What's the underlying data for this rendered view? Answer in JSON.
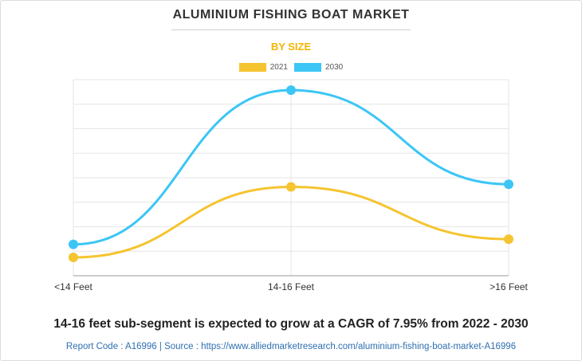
{
  "header": {
    "title": "ALUMINIUM FISHING BOAT MARKET",
    "subtitle": "BY SIZE"
  },
  "colors": {
    "series_2021": "#f5c431",
    "series_2030": "#3cc6f5",
    "grid": "#e6e6e6",
    "axis": "#999999"
  },
  "chart_data": {
    "type": "line",
    "title": "",
    "xlabel": "",
    "ylabel": "",
    "categories": [
      "<14 Feet",
      "14-16 Feet",
      ">16 Feet"
    ],
    "series": [
      {
        "name": "2021",
        "values": [
          0.7,
          3.4,
          1.4
        ]
      },
      {
        "name": "2030",
        "values": [
          1.2,
          7.1,
          3.5
        ]
      }
    ],
    "ylim": [
      0,
      7.5
    ],
    "grid": true,
    "legend": "top-center",
    "smooth": true
  },
  "footer": {
    "headline": "14-16 feet sub-segment is expected to grow at a CAGR of 7.95% from 2022 - 2030",
    "source": "Report Code : A16996  |  Source : https://www.alliedmarketresearch.com/aluminium-fishing-boat-market-A16996"
  }
}
